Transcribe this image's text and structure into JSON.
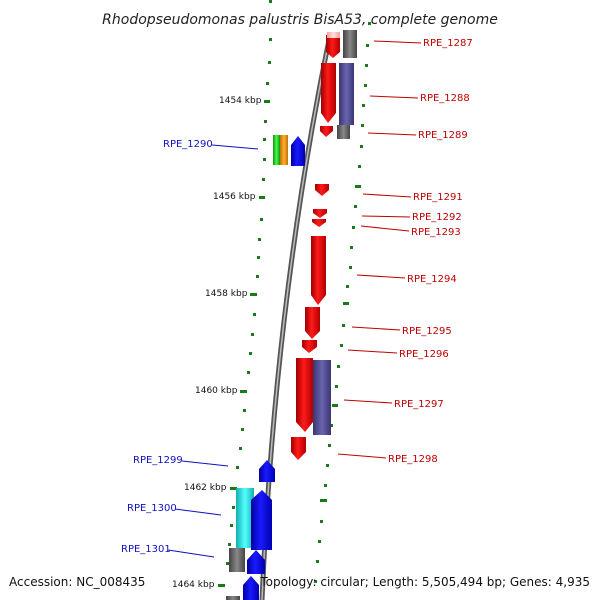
{
  "title": "Rhodopseudomonas palustris BisA53, complete genome",
  "footer": {
    "accession": "Accession: NC_008435",
    "summary": "Topology: circular; Length: 5,505,494 bp; Genes: 4,935"
  },
  "colors": {
    "forward_label": "#1010c0",
    "reverse_label": "#c00000",
    "tick": "#1a7a1a",
    "backbone": "#777777"
  },
  "kbp_ticks": [
    "1454 kbp",
    "1456 kbp",
    "1458 kbp",
    "1460 kbp",
    "1462 kbp",
    "1464 kbp"
  ],
  "gene_labels": {
    "forward": [
      "RPE_1290",
      "RPE_1299",
      "RPE_1300",
      "RPE_1301"
    ],
    "reverse": [
      "RPE_1287",
      "RPE_1288",
      "RPE_1289",
      "RPE_1291",
      "RPE_1292",
      "RPE_1293",
      "RPE_1294",
      "RPE_1295",
      "RPE_1296",
      "RPE_1297",
      "RPE_1298"
    ]
  }
}
